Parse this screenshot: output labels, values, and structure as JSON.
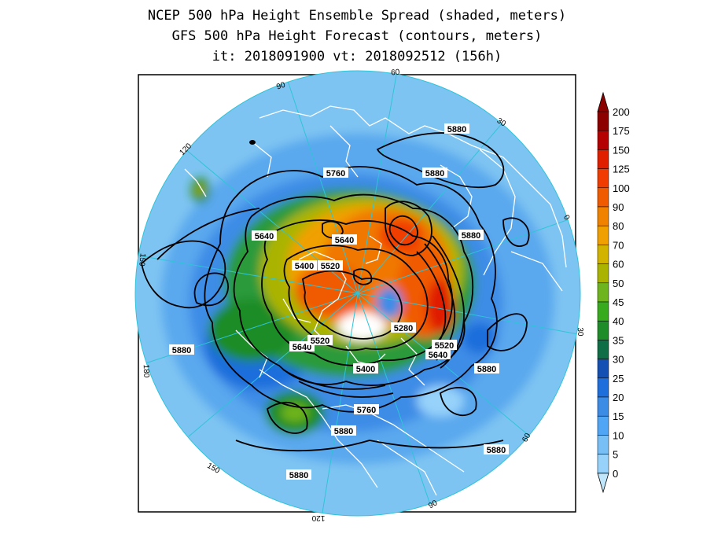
{
  "header": {
    "line1": "NCEP 500 hPa Height Ensemble Spread (shaded, meters)",
    "line2": "GFS 500 hPa Height Forecast (contours, meters)",
    "line3": "it: 2018091900     vt: 2018092512 (156h)"
  },
  "map": {
    "projection": "north polar stereographic",
    "longitude_labels": [
      {
        "text": "60",
        "rot": -5
      },
      {
        "text": "30",
        "rot": 32
      },
      {
        "text": "0",
        "rot": 60
      },
      {
        "text": "30",
        "rot": 88
      },
      {
        "text": "60",
        "rot": 120
      },
      {
        "text": "90",
        "rot": 150
      },
      {
        "text": "120",
        "rot": 180
      },
      {
        "text": "150",
        "rot": -150
      },
      {
        "text": "180",
        "rot": -88
      },
      {
        "text": "150",
        "rot": -85
      },
      {
        "text": "120",
        "rot": -45
      },
      {
        "text": "90",
        "rot": -18
      }
    ],
    "contour_labels": [
      "5880",
      "5880",
      "5760",
      "5880",
      "5640",
      "5640",
      "5880",
      "5400",
      "5520",
      "5640",
      "5520",
      "5280",
      "5520",
      "5640",
      "5880",
      "5400",
      "5880",
      "5760",
      "5880",
      "5880",
      "5880"
    ]
  },
  "colorbar": {
    "levels": [
      "0",
      "5",
      "10",
      "15",
      "20",
      "25",
      "30",
      "35",
      "40",
      "45",
      "50",
      "60",
      "70",
      "80",
      "90",
      "100",
      "125",
      "150",
      "175",
      "200"
    ],
    "colors": [
      "#bfe6fb",
      "#96d2fa",
      "#78bff5",
      "#50a5f5",
      "#3c8ce6",
      "#1e6edc",
      "#1450b4",
      "#0f6e46",
      "#1e8c28",
      "#37aa1e",
      "#6eb41e",
      "#aab400",
      "#d2b400",
      "#f0a000",
      "#f08200",
      "#f05a00",
      "#f03c00",
      "#e01e00",
      "#b40000",
      "#8c0000"
    ]
  }
}
